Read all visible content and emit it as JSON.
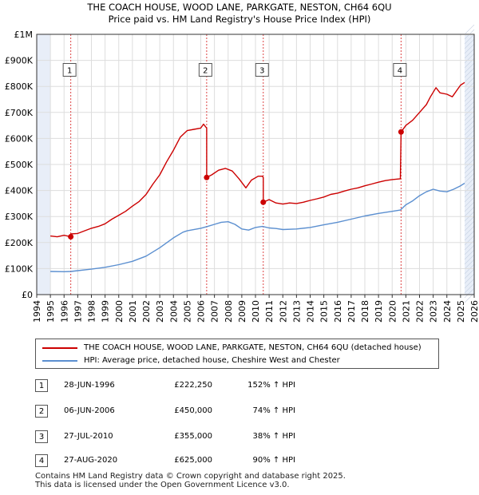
{
  "title_line1": "THE COACH HOUSE, WOOD LANE, PARKGATE, NESTON, CH64 6QU",
  "title_line2": "Price paid vs. HM Land Registry's House Price Index (HPI)",
  "colors": {
    "property": "#cc0000",
    "hpi": "#5b8fd0",
    "marker_line": "#dd4444",
    "grid": "#dddddd",
    "shade": "#e8eef8"
  },
  "legend": {
    "property": "THE COACH HOUSE, WOOD LANE, PARKGATE, NESTON, CH64 6QU (detached house)",
    "hpi": "HPI: Average price, detached house, Cheshire West and Chester"
  },
  "transactions": [
    {
      "num": "1",
      "date": "28-JUN-1996",
      "price": "£222,250",
      "hpi": "152% ↑ HPI"
    },
    {
      "num": "2",
      "date": "06-JUN-2006",
      "price": "£450,000",
      "hpi": "74% ↑ HPI"
    },
    {
      "num": "3",
      "date": "27-JUL-2010",
      "price": "£355,000",
      "hpi": "38% ↑ HPI"
    },
    {
      "num": "4",
      "date": "27-AUG-2020",
      "price": "£625,000",
      "hpi": "90% ↑ HPI"
    }
  ],
  "footer_line1": "Contains HM Land Registry data © Crown copyright and database right 2025.",
  "footer_line2": "This data is licensed under the Open Government Licence v3.0.",
  "chart_data": {
    "type": "line",
    "xlim": [
      1994,
      2026
    ],
    "ylim": [
      0,
      1000000
    ],
    "y_ticks": [
      0,
      100000,
      200000,
      300000,
      400000,
      500000,
      600000,
      700000,
      800000,
      900000,
      1000000
    ],
    "y_tick_labels": [
      "£0",
      "£100K",
      "£200K",
      "£300K",
      "£400K",
      "£500K",
      "£600K",
      "£700K",
      "£800K",
      "£900K",
      "£1M"
    ],
    "x_ticks": [
      1994,
      1995,
      1996,
      1997,
      1998,
      1999,
      2000,
      2001,
      2002,
      2003,
      2004,
      2005,
      2006,
      2007,
      2008,
      2009,
      2010,
      2011,
      2012,
      2013,
      2014,
      2015,
      2016,
      2017,
      2018,
      2019,
      2020,
      2021,
      2022,
      2023,
      2024,
      2025,
      2026
    ],
    "x_tick_labels": [
      "1994",
      "1995",
      "1996",
      "1997",
      "1998",
      "1999",
      "2000",
      "2001",
      "2002",
      "2003",
      "2004",
      "2005",
      "2006",
      "2007",
      "2008",
      "2009",
      "2010",
      "2011",
      "2012",
      "2013",
      "2014",
      "2015",
      "2016",
      "2017",
      "2018",
      "2019",
      "2020",
      "2021",
      "2022",
      "2023",
      "2024",
      "2025",
      "2026"
    ],
    "data_start": 1995.0,
    "data_end": 2025.3,
    "shade_from": 2025.3,
    "series": [
      {
        "name": "THE COACH HOUSE, WOOD LANE, PARKGATE, NESTON, CH64 6QU (detached house)",
        "color": "#cc0000",
        "points": [
          [
            1995.0,
            225000
          ],
          [
            1995.5,
            222000
          ],
          [
            1996.0,
            228000
          ],
          [
            1996.49,
            222250
          ],
          [
            1996.49,
            233000
          ],
          [
            1997.0,
            235000
          ],
          [
            1997.5,
            245000
          ],
          [
            1998.0,
            255000
          ],
          [
            1998.5,
            262000
          ],
          [
            1999.0,
            272000
          ],
          [
            1999.5,
            290000
          ],
          [
            2000.0,
            305000
          ],
          [
            2000.5,
            320000
          ],
          [
            2001.0,
            340000
          ],
          [
            2001.5,
            358000
          ],
          [
            2002.0,
            385000
          ],
          [
            2002.5,
            425000
          ],
          [
            2003.0,
            460000
          ],
          [
            2003.5,
            510000
          ],
          [
            2004.0,
            555000
          ],
          [
            2004.5,
            605000
          ],
          [
            2005.0,
            630000
          ],
          [
            2005.5,
            635000
          ],
          [
            2006.0,
            640000
          ],
          [
            2006.2,
            655000
          ],
          [
            2006.43,
            640000
          ],
          [
            2006.43,
            450000
          ],
          [
            2006.8,
            460000
          ],
          [
            2007.3,
            478000
          ],
          [
            2007.8,
            485000
          ],
          [
            2008.3,
            475000
          ],
          [
            2008.8,
            445000
          ],
          [
            2009.3,
            410000
          ],
          [
            2009.7,
            440000
          ],
          [
            2010.2,
            455000
          ],
          [
            2010.5,
            455000
          ],
          [
            2010.57,
            450000
          ],
          [
            2010.57,
            355000
          ],
          [
            2011.0,
            365000
          ],
          [
            2011.5,
            352000
          ],
          [
            2012.0,
            348000
          ],
          [
            2012.5,
            352000
          ],
          [
            2013.0,
            350000
          ],
          [
            2013.5,
            355000
          ],
          [
            2014.0,
            362000
          ],
          [
            2014.5,
            368000
          ],
          [
            2015.0,
            375000
          ],
          [
            2015.5,
            385000
          ],
          [
            2016.0,
            390000
          ],
          [
            2016.5,
            398000
          ],
          [
            2017.0,
            405000
          ],
          [
            2017.5,
            410000
          ],
          [
            2018.0,
            418000
          ],
          [
            2018.5,
            425000
          ],
          [
            2019.0,
            432000
          ],
          [
            2019.5,
            438000
          ],
          [
            2020.0,
            442000
          ],
          [
            2020.6,
            445000
          ],
          [
            2020.65,
            625000
          ],
          [
            2021.0,
            650000
          ],
          [
            2021.5,
            670000
          ],
          [
            2022.0,
            700000
          ],
          [
            2022.5,
            730000
          ],
          [
            2022.8,
            760000
          ],
          [
            2023.2,
            795000
          ],
          [
            2023.5,
            775000
          ],
          [
            2024.0,
            770000
          ],
          [
            2024.4,
            760000
          ],
          [
            2024.8,
            790000
          ],
          [
            2025.0,
            805000
          ],
          [
            2025.3,
            815000
          ]
        ]
      },
      {
        "name": "HPI: Average price, detached house, Cheshire West and Chester",
        "color": "#5b8fd0",
        "points": [
          [
            1995.0,
            89000
          ],
          [
            1996.0,
            88000
          ],
          [
            1996.5,
            89000
          ],
          [
            1997.0,
            92000
          ],
          [
            1998.0,
            98000
          ],
          [
            1999.0,
            105000
          ],
          [
            2000.0,
            115000
          ],
          [
            2001.0,
            128000
          ],
          [
            2002.0,
            148000
          ],
          [
            2003.0,
            180000
          ],
          [
            2004.0,
            218000
          ],
          [
            2004.7,
            240000
          ],
          [
            2005.0,
            245000
          ],
          [
            2006.0,
            255000
          ],
          [
            2006.5,
            262000
          ],
          [
            2007.0,
            270000
          ],
          [
            2007.5,
            278000
          ],
          [
            2008.0,
            280000
          ],
          [
            2008.5,
            270000
          ],
          [
            2009.0,
            252000
          ],
          [
            2009.5,
            248000
          ],
          [
            2010.0,
            258000
          ],
          [
            2010.5,
            262000
          ],
          [
            2011.0,
            256000
          ],
          [
            2011.5,
            254000
          ],
          [
            2012.0,
            250000
          ],
          [
            2013.0,
            252000
          ],
          [
            2014.0,
            258000
          ],
          [
            2015.0,
            268000
          ],
          [
            2016.0,
            278000
          ],
          [
            2017.0,
            290000
          ],
          [
            2018.0,
            302000
          ],
          [
            2019.0,
            312000
          ],
          [
            2020.0,
            320000
          ],
          [
            2020.6,
            325000
          ],
          [
            2021.0,
            345000
          ],
          [
            2021.5,
            360000
          ],
          [
            2022.0,
            380000
          ],
          [
            2022.5,
            395000
          ],
          [
            2023.0,
            405000
          ],
          [
            2023.5,
            398000
          ],
          [
            2024.0,
            395000
          ],
          [
            2024.5,
            405000
          ],
          [
            2025.0,
            418000
          ],
          [
            2025.3,
            428000
          ]
        ]
      }
    ],
    "sales": [
      {
        "label": "1",
        "x": 1996.49,
        "y": 222250
      },
      {
        "label": "2",
        "x": 2006.43,
        "y": 450000
      },
      {
        "label": "3",
        "x": 2010.57,
        "y": 355000
      },
      {
        "label": "4",
        "x": 2020.65,
        "y": 625000
      }
    ]
  }
}
